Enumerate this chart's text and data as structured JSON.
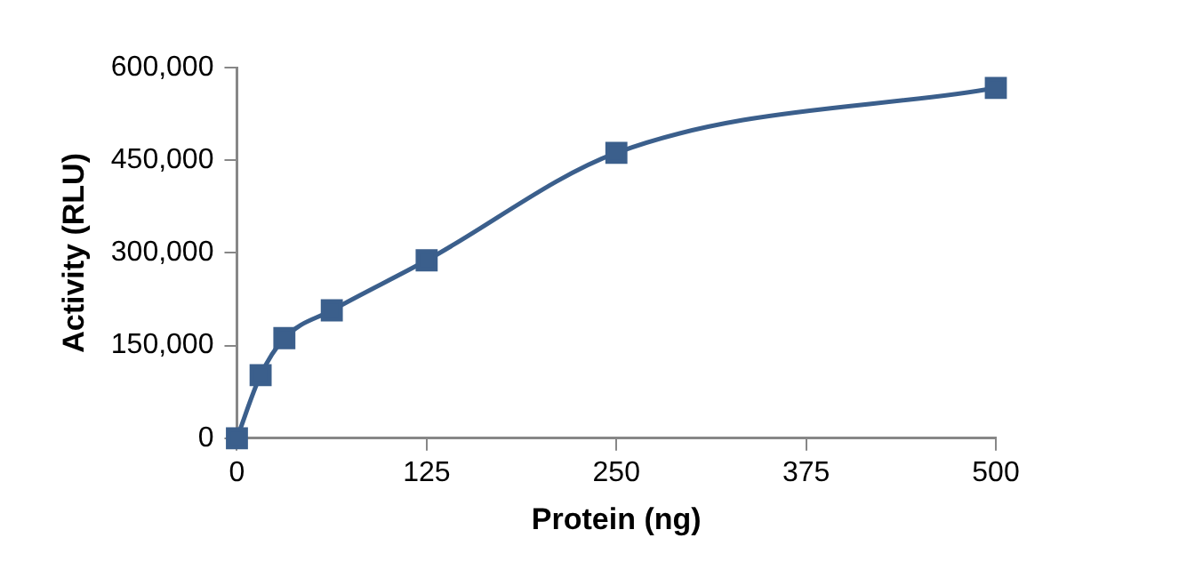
{
  "chart_data": {
    "type": "line",
    "xlabel": "Protein (ng)",
    "ylabel": "Activity (RLU)",
    "x": [
      0,
      15.6,
      31.25,
      62.5,
      125,
      250,
      500
    ],
    "series": [
      {
        "color": "#3b5f8c",
        "values": [
          0,
          102000,
          162000,
          207000,
          288000,
          462000,
          567000
        ]
      }
    ],
    "marker": "square",
    "line_style": "solid",
    "grid": false,
    "legend": false,
    "xlim": [
      0,
      500
    ],
    "xticks": [
      0,
      125,
      250,
      375,
      500
    ],
    "ylim": [
      0,
      600000
    ],
    "yticks": [
      {
        "value": 0,
        "label": "0"
      },
      {
        "value": 150000,
        "label": "150,000"
      },
      {
        "value": 300000,
        "label": "300,000"
      },
      {
        "value": 450000,
        "label": "450,000"
      },
      {
        "value": 600000,
        "label": "600,000"
      }
    ]
  }
}
